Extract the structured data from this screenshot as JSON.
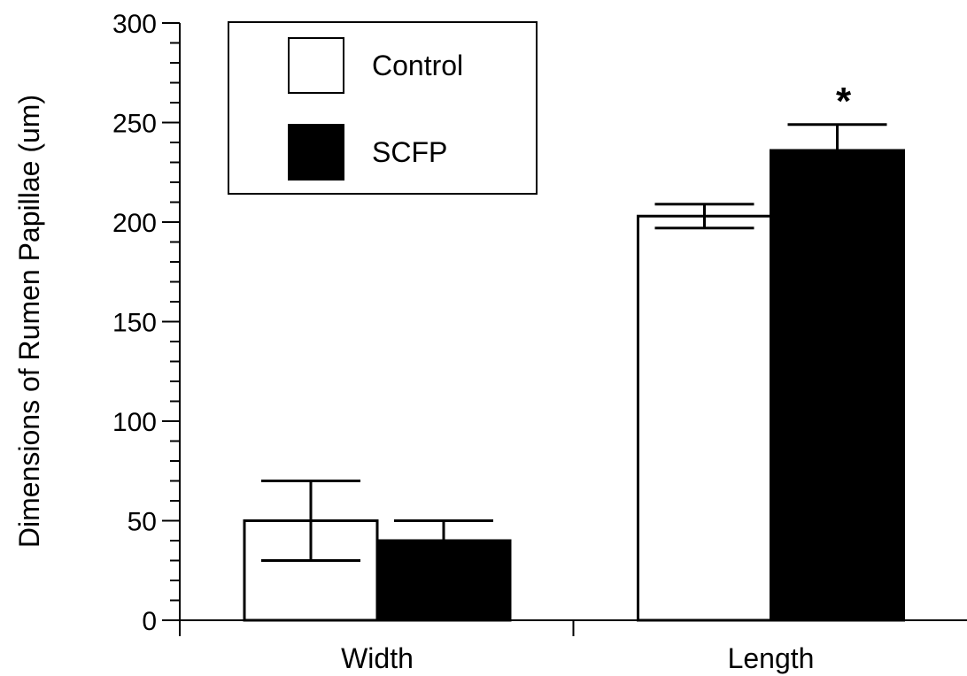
{
  "chart_data": {
    "type": "bar",
    "title": "",
    "xlabel": "",
    "ylabel": "Dimensions of Rumen Papillae (um)",
    "ylim": [
      0,
      300
    ],
    "yticks": [
      0,
      50,
      100,
      150,
      200,
      250,
      300
    ],
    "categories": [
      "Width",
      "Length"
    ],
    "series": [
      {
        "name": "Control",
        "color": "#ffffff",
        "values": [
          50,
          203
        ],
        "error": [
          20,
          6
        ]
      },
      {
        "name": "SCFP",
        "color": "#000000",
        "values": [
          40,
          236
        ],
        "error": [
          10,
          13
        ]
      }
    ],
    "annotations": [
      {
        "text": "*",
        "category": "Length",
        "series": "SCFP"
      }
    ],
    "legend": {
      "position": "top-left"
    },
    "grid": false
  }
}
